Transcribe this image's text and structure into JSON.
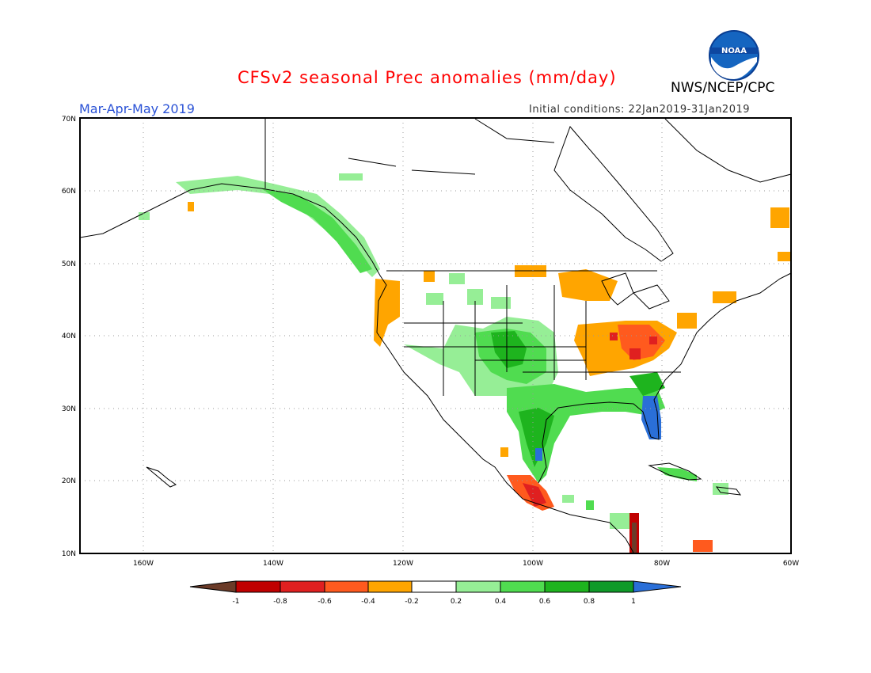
{
  "title": "CFSv2 seasonal Prec anomalies (mm/day)",
  "season": "Mar-Apr-May 2019",
  "initial_conditions": "Initial conditions: 22Jan2019-31Jan2019",
  "agency": "NWS/NCEP/CPC",
  "logo_text": "NOAA",
  "axes": {
    "lat_labels": [
      "70N",
      "60N",
      "50N",
      "40N",
      "30N",
      "20N",
      "10N"
    ],
    "lon_labels": [
      "160W",
      "140W",
      "120W",
      "100W",
      "80W",
      "60W"
    ]
  },
  "colorbar": {
    "labels": [
      "-1",
      "-0.8",
      "-0.6",
      "-0.4",
      "-0.2",
      "0.2",
      "0.4",
      "0.6",
      "0.8",
      "1"
    ],
    "colors": [
      "#6b3b28",
      "#c00000",
      "#e02020",
      "#ff5a1e",
      "#ffa500",
      "#ffffff",
      "#96ee96",
      "#50dc50",
      "#1eb41e",
      "#0f9a28",
      "#2a6fd8"
    ]
  },
  "colors": {
    "title": "#ff0000",
    "season": "#2a52d6",
    "coast": "#000000",
    "grid": "#999999"
  }
}
